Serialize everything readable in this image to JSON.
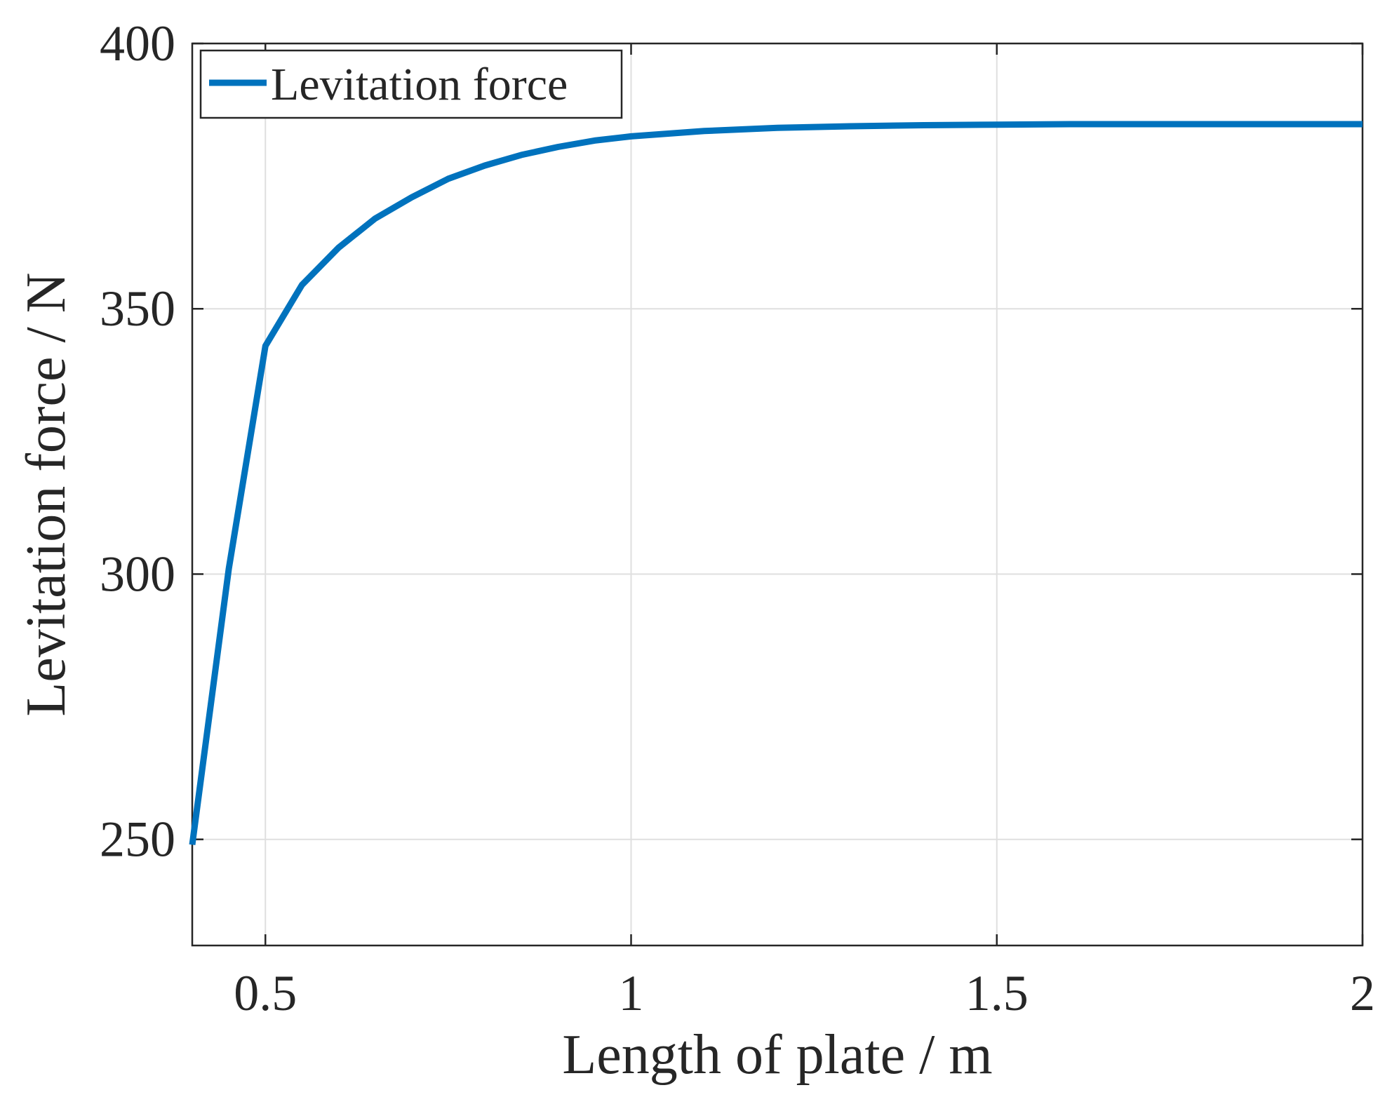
{
  "chart_data": {
    "type": "line",
    "title": "",
    "xlabel": "Length of plate / m",
    "ylabel": "Levitation force / N",
    "xlim": [
      0.4,
      2.0
    ],
    "ylim": [
      230,
      400
    ],
    "xticks": [
      0.5,
      1,
      1.5,
      2
    ],
    "xtick_labels": [
      "0.5",
      "1",
      "1.5",
      "2"
    ],
    "yticks": [
      250,
      300,
      350,
      400
    ],
    "ytick_labels": [
      "250",
      "300",
      "350",
      "400"
    ],
    "grid": true,
    "legend": {
      "position": "top-left",
      "entries": [
        "Levitation force"
      ]
    },
    "series": [
      {
        "name": "Levitation force",
        "color": "#0072BD",
        "x": [
          0.4,
          0.45,
          0.5,
          0.55,
          0.6,
          0.65,
          0.7,
          0.75,
          0.8,
          0.85,
          0.9,
          0.95,
          1.0,
          1.1,
          1.2,
          1.3,
          1.4,
          1.5,
          1.6,
          1.7,
          1.8,
          1.9,
          2.0
        ],
        "y": [
          249,
          301,
          343,
          354.5,
          361.5,
          367,
          371,
          374.5,
          377,
          379,
          380.5,
          381.7,
          382.5,
          383.5,
          384.1,
          384.4,
          384.6,
          384.7,
          384.8,
          384.8,
          384.8,
          384.8,
          384.8
        ]
      }
    ]
  }
}
